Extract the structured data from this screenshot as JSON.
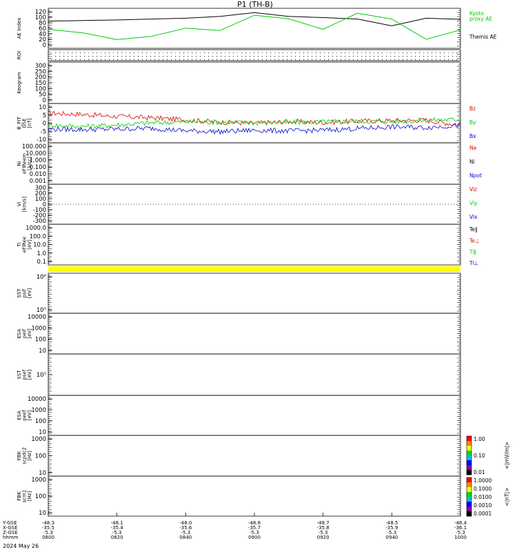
{
  "title": "P1  (TH-B)",
  "date_label": "2024 May 26",
  "colors": {
    "red": "#dd0000",
    "green": "#00cc00",
    "blue": "#0000cc",
    "black": "#000000",
    "yellow": "#ffff00",
    "bright_green": "#33dd33"
  },
  "panels": [
    {
      "id": "ae",
      "ylabels": [
        "AE Index"
      ],
      "ticks": [
        "120",
        "100",
        "80",
        "60",
        "40",
        "20",
        "0"
      ],
      "right_labels": [
        {
          "text": "Kyoto",
          "color": "green"
        },
        {
          "text": "proxy AE",
          "color": "green"
        },
        {
          "text": "Themis AE",
          "color": "black"
        }
      ]
    },
    {
      "id": "roi",
      "ylabels": [
        "ROI"
      ],
      "ticks": [],
      "right_labels": []
    },
    {
      "id": "keogram",
      "ylabels": [
        "Keogram"
      ],
      "ticks": [
        "300",
        "250",
        "200",
        "150",
        "100",
        "50",
        "0"
      ],
      "right_labels": []
    },
    {
      "id": "bfield",
      "ylabels": [
        "B_FIT",
        "GSE",
        "[nT]"
      ],
      "ticks": [
        "10",
        "5",
        "0",
        "-5",
        "-10"
      ],
      "right_labels": [
        {
          "text": "Bz",
          "color": "red"
        },
        {
          "text": "By",
          "color": "green"
        },
        {
          "text": "Bx",
          "color": "blue"
        }
      ]
    },
    {
      "id": "ni",
      "ylabels": [
        "Ni",
        "eFlReem",
        "[1/cc]"
      ],
      "ticks": [
        "100.000",
        "10.000",
        "1.000",
        "0.100",
        "0.010",
        "0.001"
      ],
      "right_labels": [
        {
          "text": "Ne",
          "color": "red"
        },
        {
          "text": "Ni",
          "color": "black"
        },
        {
          "text": "Npot",
          "color": "blue"
        }
      ]
    },
    {
      "id": "vi",
      "ylabels": [
        "Vi",
        "[km/s]"
      ],
      "ticks": [
        "300",
        "200",
        "100",
        "0",
        "-100",
        "-200",
        "-300"
      ],
      "right_labels": [
        {
          "text": "Viz",
          "color": "red"
        },
        {
          "text": "Viy",
          "color": "green"
        },
        {
          "text": "Vix",
          "color": "blue"
        }
      ]
    },
    {
      "id": "ti",
      "ylabels": [
        "Ti",
        "eFlRee",
        "[eV]"
      ],
      "ticks": [
        "1000.0",
        "100.0",
        "10.0",
        "1.0",
        "0.1"
      ],
      "right_labels": [
        {
          "text": "Te‖",
          "color": "black"
        },
        {
          "text": "Te⊥",
          "color": "red"
        },
        {
          "text": "Ti‖",
          "color": "green"
        },
        {
          "text": "Ti⊥",
          "color": "blue"
        }
      ]
    },
    {
      "id": "sst1",
      "ylabels": [
        "SST",
        "psif",
        "[eV]"
      ],
      "ticks": [
        "10⁶",
        "10⁵"
      ],
      "right_labels": []
    },
    {
      "id": "esa1",
      "ylabels": [
        "ESA",
        "peif",
        "[eV]"
      ],
      "ticks": [
        "10000",
        "1000",
        "100",
        "10"
      ],
      "right_labels": []
    },
    {
      "id": "sst2",
      "ylabels": [
        "SST",
        "psef",
        "[eV]"
      ],
      "ticks": [
        "10⁵"
      ],
      "right_labels": []
    },
    {
      "id": "esa2",
      "ylabels": [
        "ESA",
        "peef",
        "[eV]"
      ],
      "ticks": [
        "10000",
        "1000",
        "100",
        "10"
      ],
      "right_labels": []
    },
    {
      "id": "fbk1",
      "ylabels": [
        "FBK",
        "scpdc2",
        "[Hz]"
      ],
      "ticks": [
        "1000",
        "100",
        "10"
      ],
      "right_labels": []
    },
    {
      "id": "fbk2",
      "ylabels": [
        "FBK",
        "scm1",
        "[Hz]"
      ],
      "ticks": [
        "1000",
        "100",
        "10"
      ],
      "right_labels": []
    }
  ],
  "colorbars": [
    {
      "ticks": [
        "1.00",
        "0.10",
        "0.01"
      ],
      "label": "<|mV/m|>"
    },
    {
      "ticks": [
        "1.0000",
        "0.1000",
        "0.0100",
        "0.0010",
        "0.0001"
      ],
      "label": "<|nT|>"
    }
  ],
  "bottom_axis": {
    "row_labels": [
      "Y-GSE",
      "X-GSE",
      "Z-GSE",
      "hhmm"
    ],
    "columns": [
      [
        "-48.3",
        "-35.5",
        "-5.3",
        "0800"
      ],
      [
        "-48.1",
        "-35.4",
        "-5.3",
        "0820"
      ],
      [
        "-48.0",
        "-35.6",
        "-5.3",
        "0840"
      ],
      [
        "-48.8",
        "-35.7",
        "-5.3",
        "0900"
      ],
      [
        "-48.7",
        "-35.8",
        "-5.3",
        "0920"
      ],
      [
        "-48.5",
        "-35.9",
        "-5.3",
        "0940"
      ],
      [
        "-48.4",
        "-36.1",
        "-5.3",
        "1000"
      ]
    ]
  },
  "chart_data": [
    {
      "type": "line",
      "panel": "AE Index",
      "ylim": [
        0,
        120
      ],
      "x_hhmm": [
        "0800",
        "0810",
        "0820",
        "0830",
        "0840",
        "0850",
        "0900",
        "0910",
        "0920",
        "0930",
        "0940",
        "0950",
        "1000"
      ],
      "series": [
        {
          "name": "Themis AE",
          "color": "black",
          "values": [
            88,
            90,
            92,
            95,
            98,
            104,
            117,
            104,
            100,
            95,
            72,
            98,
            94
          ]
        },
        {
          "name": "Kyoto proxy AE",
          "color": "green",
          "values": [
            60,
            48,
            25,
            36,
            64,
            56,
            108,
            96,
            60,
            115,
            95,
            26,
            58
          ]
        }
      ]
    },
    {
      "type": "line",
      "panel": "B_FIT GSE",
      "ylim": [
        -10,
        10
      ],
      "x_hhmm": [
        "0800",
        "0810",
        "0820",
        "0830",
        "0840",
        "0850",
        "0900",
        "0910",
        "0920",
        "0930",
        "0940",
        "0950",
        "1000"
      ],
      "series": [
        {
          "name": "Bz",
          "color": "red",
          "values": [
            6,
            5.2,
            4,
            3.2,
            2,
            0.6,
            0,
            1,
            0.4,
            1.2,
            1.6,
            1.8,
            -1.2
          ]
        },
        {
          "name": "By",
          "color": "green",
          "values": [
            -1,
            -2,
            -1,
            0.2,
            0.8,
            0.6,
            0.2,
            0.4,
            0.8,
            1.2,
            0.8,
            1.8,
            2.2
          ]
        },
        {
          "name": "Bx",
          "color": "blue",
          "values": [
            -3.5,
            -3.8,
            -3.5,
            -3,
            -4.5,
            -5,
            -4.2,
            -4.6,
            -4.2,
            -3.2,
            -2.2,
            -2.6,
            -1.2
          ]
        }
      ]
    },
    {
      "type": "line",
      "panel": "Vi",
      "ylim": [
        -300,
        300
      ],
      "note_series": "zero reference line only"
    }
  ]
}
